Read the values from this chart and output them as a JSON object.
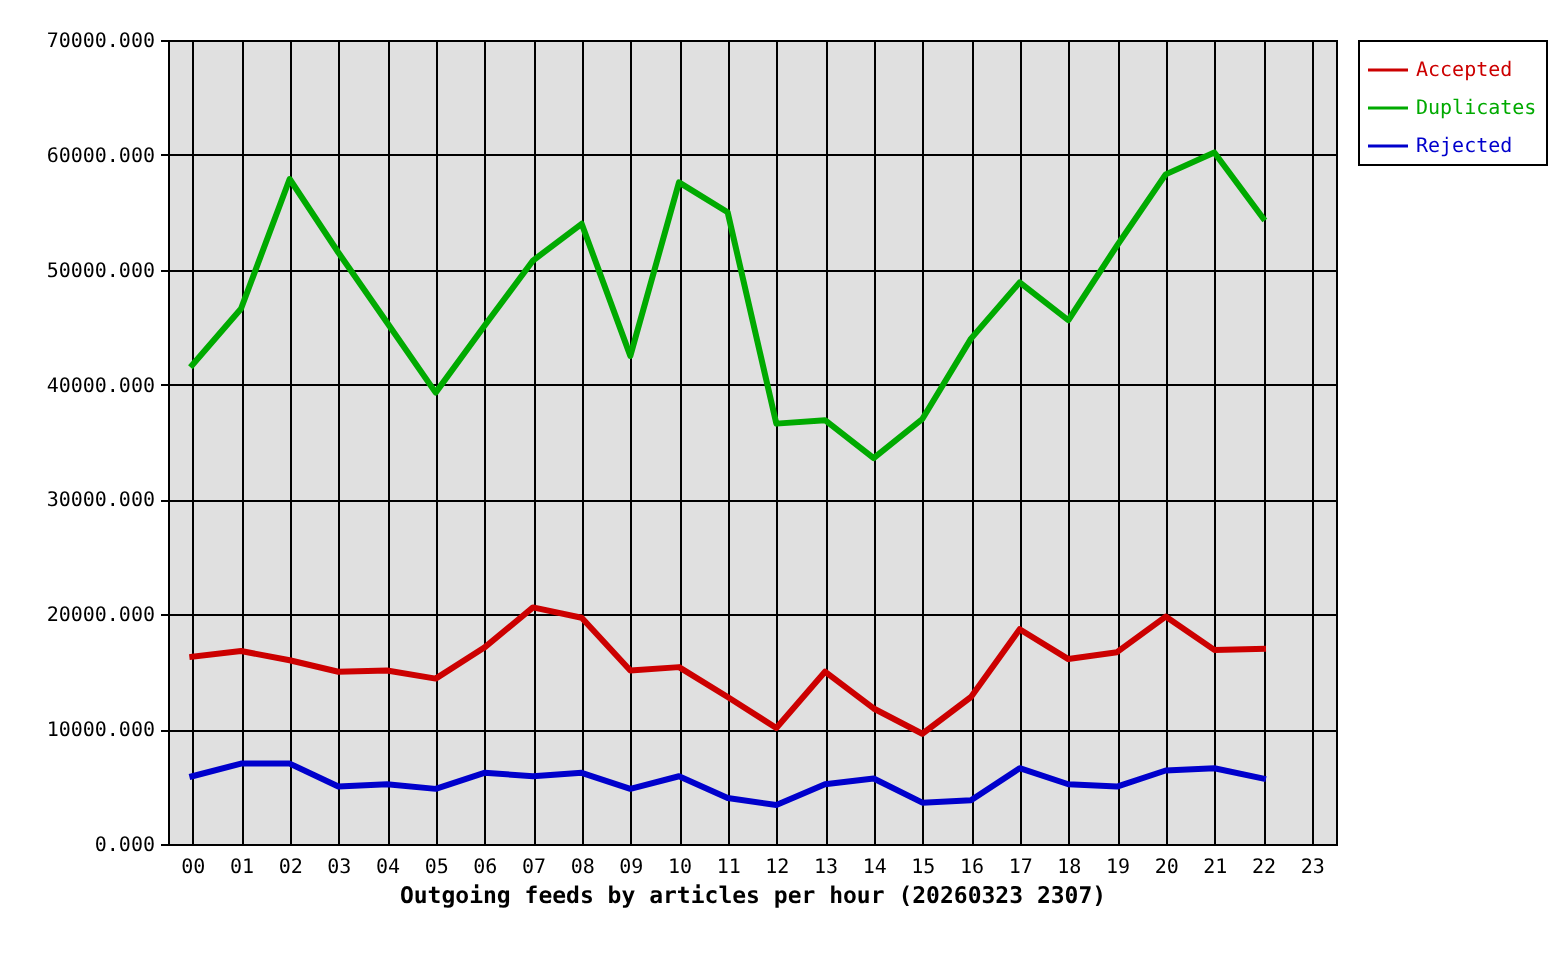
{
  "chart_data": {
    "type": "line",
    "xlabel": "Outgoing feeds by articles per hour (20260323 2307)",
    "categories": [
      "00",
      "01",
      "02",
      "03",
      "04",
      "05",
      "06",
      "07",
      "08",
      "09",
      "10",
      "11",
      "12",
      "13",
      "14",
      "15",
      "16",
      "17",
      "18",
      "19",
      "20",
      "21",
      "22",
      "23"
    ],
    "series": [
      {
        "name": "Accepted",
        "color": "#cc0000",
        "values": [
          16300,
          16800,
          16000,
          15000,
          15100,
          14400,
          17100,
          20600,
          19700,
          15100,
          15400,
          12800,
          10100,
          15000,
          11800,
          9600,
          12800,
          18700,
          16100,
          16700,
          19800,
          16900,
          17000,
          null
        ]
      },
      {
        "name": "Duplicates",
        "color": "#00aa00",
        "values": [
          41700,
          46600,
          57900,
          51500,
          45400,
          39300,
          45100,
          50800,
          54000,
          42500,
          57600,
          55000,
          36600,
          36900,
          33600,
          37000,
          44000,
          48900,
          45600,
          52100,
          58300,
          60200,
          54500,
          null
        ]
      },
      {
        "name": "Rejected",
        "color": "#0000cc",
        "values": [
          5900,
          7000,
          7000,
          5000,
          5200,
          4800,
          6200,
          5900,
          6200,
          4800,
          5900,
          4000,
          3400,
          5200,
          5700,
          3600,
          3800,
          6600,
          5200,
          5000,
          6400,
          6600,
          5700,
          null
        ]
      }
    ],
    "ylim": [
      0,
      70000
    ],
    "yticks": [
      {
        "value": 0,
        "label": "0.000"
      },
      {
        "value": 10000,
        "label": "10000.000"
      },
      {
        "value": 20000,
        "label": "20000.000"
      },
      {
        "value": 30000,
        "label": "30000.000"
      },
      {
        "value": 40000,
        "label": "40000.000"
      },
      {
        "value": 50000,
        "label": "50000.000"
      },
      {
        "value": 60000,
        "label": "60000.000"
      },
      {
        "value": 70000,
        "label": "70000.000"
      }
    ],
    "grid": true,
    "legend": "top right"
  }
}
